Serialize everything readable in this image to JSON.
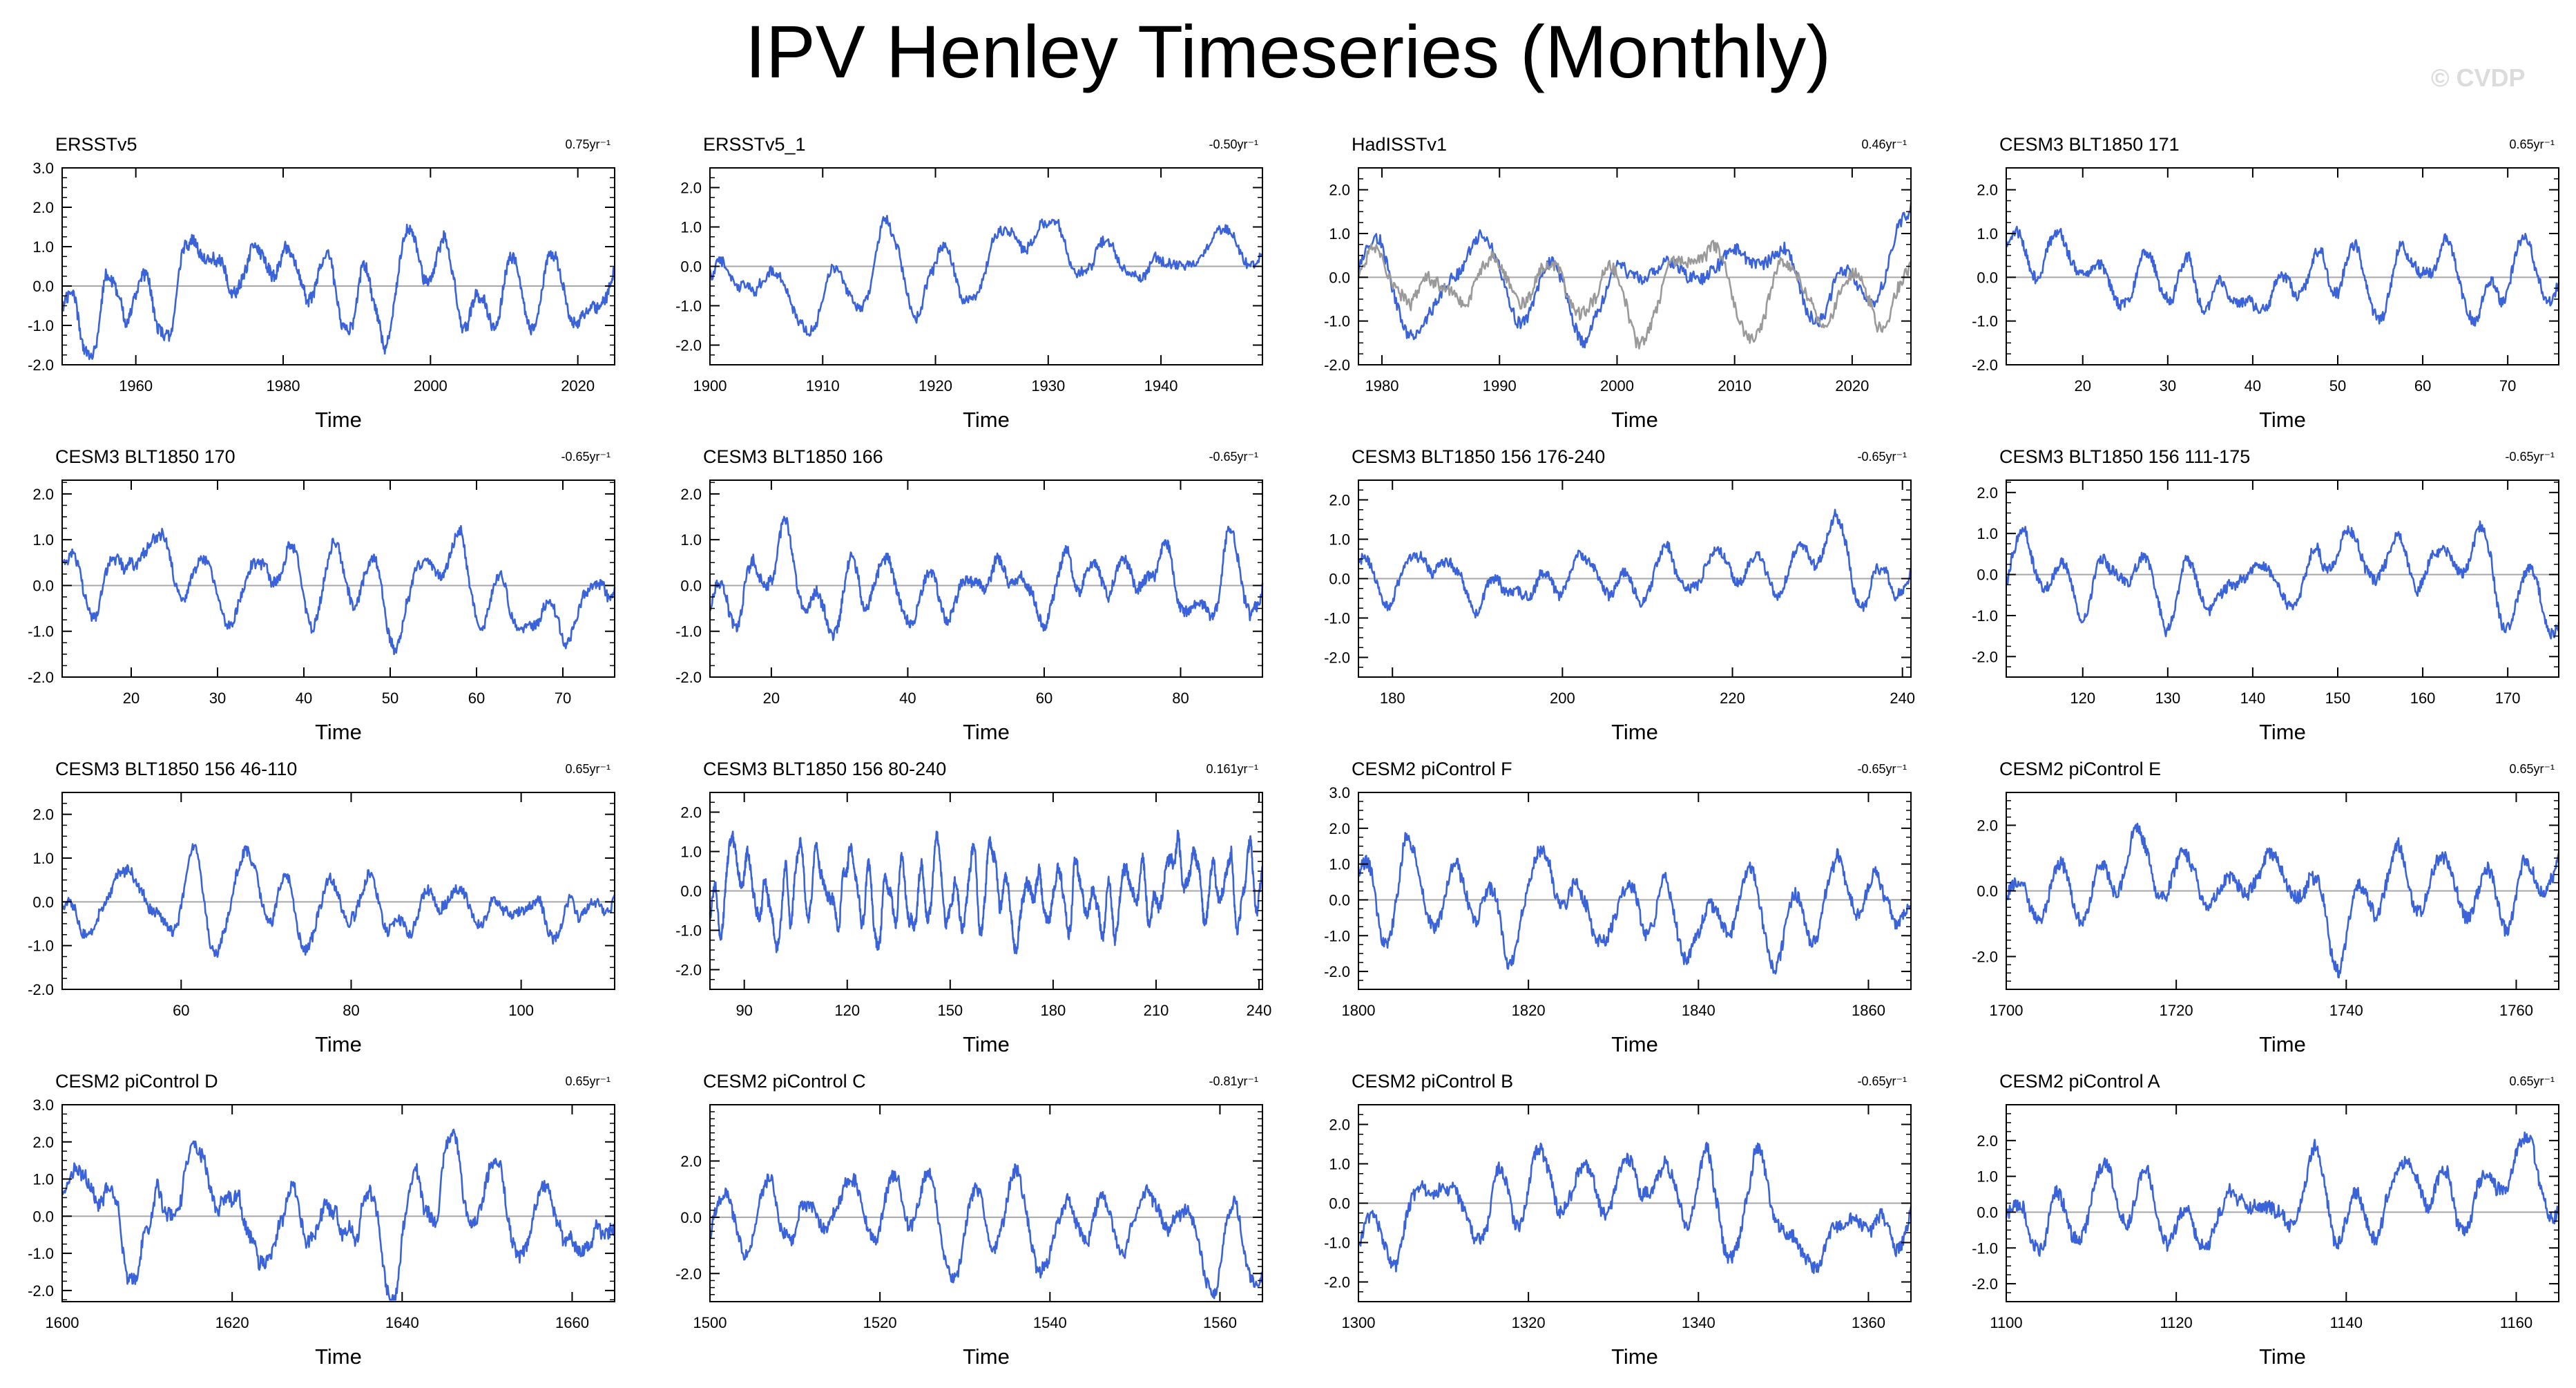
{
  "page": {
    "title": "IPV Henley Timeseries (Monthly)",
    "credit": "© CVDP"
  },
  "colors": {
    "line": "#3a62d9",
    "line_alt": "#9a9a9a",
    "axis": "#000000",
    "zero": "#a8a8a8",
    "credit": "#dcdcdc"
  },
  "chart_data": [
    {
      "type": "line",
      "title": "ERSSTv5",
      "trend": "0.75yr⁻¹",
      "xlabel": "Time",
      "x_range": [
        1950,
        2025
      ],
      "ylim": [
        -2.0,
        3.0
      ],
      "xticks": [
        1960,
        1980,
        2000,
        2020
      ],
      "yticks": [
        -2.0,
        -1.0,
        0.0,
        1.0,
        2.0,
        3.0
      ],
      "series": [
        {
          "amplitude": 0.9,
          "months": 900,
          "smooth": 18
        }
      ]
    },
    {
      "type": "line",
      "title": "ERSSTv5_1",
      "trend": "-0.50yr⁻¹",
      "xlabel": "Time",
      "x_range": [
        1900,
        1949
      ],
      "ylim": [
        -2.5,
        2.5
      ],
      "xticks": [
        1900,
        1910,
        1920,
        1930,
        1940
      ],
      "yticks": [
        -2.0,
        -1.0,
        0.0,
        1.0,
        2.0
      ],
      "series": [
        {
          "amplitude": 0.8,
          "months": 600,
          "smooth": 18
        }
      ]
    },
    {
      "type": "line",
      "title": "HadISSTv1",
      "trend": "0.46yr⁻¹",
      "xlabel": "Time",
      "x_range": [
        1978,
        2025
      ],
      "ylim": [
        -2.0,
        2.5
      ],
      "xticks": [
        1980,
        1990,
        2000,
        2010,
        2020
      ],
      "yticks": [
        -2.0,
        -1.0,
        0.0,
        1.0,
        2.0
      ],
      "series": [
        {
          "amplitude": 0.85,
          "months": 560,
          "smooth": 18
        },
        {
          "amplitude": 0.8,
          "months": 560,
          "smooth": 18,
          "alt": true
        }
      ]
    },
    {
      "type": "line",
      "title": "CESM3 BLT1850 171",
      "trend": "0.65yr⁻¹",
      "xlabel": "Time",
      "x_range": [
        11,
        76
      ],
      "ylim": [
        -2.0,
        2.5
      ],
      "xticks": [
        20,
        30,
        40,
        50,
        60,
        70
      ],
      "yticks": [
        -2.0,
        -1.0,
        0.0,
        1.0,
        2.0
      ],
      "series": [
        {
          "amplitude": 0.7,
          "months": 780,
          "smooth": 12
        }
      ]
    },
    {
      "type": "line",
      "title": "CESM3 BLT1850 170",
      "trend": "-0.65yr⁻¹",
      "xlabel": "Time",
      "x_range": [
        12,
        76
      ],
      "ylim": [
        -2.0,
        2.3
      ],
      "xticks": [
        20,
        30,
        40,
        50,
        60,
        70
      ],
      "yticks": [
        -2.0,
        -1.0,
        0.0,
        1.0,
        2.0
      ],
      "series": [
        {
          "amplitude": 0.65,
          "months": 770,
          "smooth": 12
        }
      ]
    },
    {
      "type": "line",
      "title": "CESM3 BLT1850 166",
      "trend": "-0.65yr⁻¹",
      "xlabel": "Time",
      "x_range": [
        11,
        92
      ],
      "ylim": [
        -2.0,
        2.3
      ],
      "xticks": [
        20,
        40,
        60,
        80
      ],
      "yticks": [
        -2.0,
        -1.0,
        0.0,
        1.0,
        2.0
      ],
      "series": [
        {
          "amplitude": 0.7,
          "months": 970,
          "smooth": 10
        }
      ]
    },
    {
      "type": "line",
      "title": "CESM3 BLT1850 156 176-240",
      "trend": "-0.65yr⁻¹",
      "xlabel": "Time",
      "x_range": [
        176,
        241
      ],
      "ylim": [
        -2.5,
        2.5
      ],
      "xticks": [
        180,
        200,
        220,
        240
      ],
      "yticks": [
        -2.0,
        -1.0,
        0.0,
        1.0,
        2.0
      ],
      "series": [
        {
          "amplitude": 0.75,
          "months": 780,
          "smooth": 12
        }
      ]
    },
    {
      "type": "line",
      "title": "CESM3 BLT1850 156 111-175",
      "trend": "-0.65yr⁻¹",
      "xlabel": "Time",
      "x_range": [
        111,
        176
      ],
      "ylim": [
        -2.5,
        2.3
      ],
      "xticks": [
        120,
        130,
        140,
        150,
        160,
        170
      ],
      "yticks": [
        -2.0,
        -1.0,
        0.0,
        1.0,
        2.0
      ],
      "series": [
        {
          "amplitude": 0.75,
          "months": 780,
          "smooth": 12
        }
      ]
    },
    {
      "type": "line",
      "title": "CESM3 BLT1850 156 46-110",
      "trend": "0.65yr⁻¹",
      "xlabel": "Time",
      "x_range": [
        46,
        111
      ],
      "ylim": [
        -2.0,
        2.5
      ],
      "xticks": [
        60,
        80,
        100
      ],
      "yticks": [
        -2.0,
        -1.0,
        0.0,
        1.0,
        2.0
      ],
      "series": [
        {
          "amplitude": 0.7,
          "months": 780,
          "smooth": 12
        }
      ]
    },
    {
      "type": "line",
      "title": "CESM3 BLT1850 156 80-240",
      "trend": "0.161yr⁻¹",
      "xlabel": "Time",
      "x_range": [
        80,
        241
      ],
      "ylim": [
        -2.5,
        2.5
      ],
      "xticks": [
        90,
        120,
        150,
        180,
        210,
        240
      ],
      "yticks": [
        -2.0,
        -1.0,
        0.0,
        1.0,
        2.0
      ],
      "series": [
        {
          "amplitude": 0.8,
          "months": 1930,
          "smooth": 8
        }
      ]
    },
    {
      "type": "line",
      "title": "CESM2 piControl F",
      "trend": "-0.65yr⁻¹",
      "xlabel": "Time",
      "x_range": [
        1800,
        1865
      ],
      "ylim": [
        -2.5,
        3.0
      ],
      "xticks": [
        1800,
        1820,
        1840,
        1860
      ],
      "yticks": [
        -2.0,
        -1.0,
        0.0,
        1.0,
        2.0,
        3.0
      ],
      "series": [
        {
          "amplitude": 1.1,
          "months": 780,
          "smooth": 14
        }
      ]
    },
    {
      "type": "line",
      "title": "CESM2 piControl E",
      "trend": "0.65yr⁻¹",
      "xlabel": "Time",
      "x_range": [
        1700,
        1765
      ],
      "ylim": [
        -3.0,
        3.0
      ],
      "xticks": [
        1700,
        1720,
        1740,
        1760
      ],
      "yticks": [
        -2.0,
        0.0,
        2.0
      ],
      "series": [
        {
          "amplitude": 1.2,
          "months": 780,
          "smooth": 14
        }
      ]
    },
    {
      "type": "line",
      "title": "CESM2 piControl D",
      "trend": "0.65yr⁻¹",
      "xlabel": "Time",
      "x_range": [
        1600,
        1665
      ],
      "ylim": [
        -2.3,
        3.0
      ],
      "xticks": [
        1600,
        1620,
        1640,
        1660
      ],
      "yticks": [
        -2.0,
        -1.0,
        0.0,
        1.0,
        2.0,
        3.0
      ],
      "series": [
        {
          "amplitude": 1.1,
          "months": 780,
          "smooth": 14
        }
      ]
    },
    {
      "type": "line",
      "title": "CESM2 piControl C",
      "trend": "-0.81yr⁻¹",
      "xlabel": "Time",
      "x_range": [
        1500,
        1565
      ],
      "ylim": [
        -3.0,
        4.0
      ],
      "xticks": [
        1500,
        1520,
        1540,
        1560
      ],
      "yticks": [
        -2.0,
        0.0,
        2.0
      ],
      "series": [
        {
          "amplitude": 1.3,
          "months": 780,
          "smooth": 14
        }
      ]
    },
    {
      "type": "line",
      "title": "CESM2 piControl B",
      "trend": "-0.65yr⁻¹",
      "xlabel": "Time",
      "x_range": [
        1300,
        1365
      ],
      "ylim": [
        -2.5,
        2.5
      ],
      "xticks": [
        1300,
        1320,
        1340,
        1360
      ],
      "yticks": [
        -2.0,
        -1.0,
        0.0,
        1.0,
        2.0
      ],
      "series": [
        {
          "amplitude": 1.0,
          "months": 780,
          "smooth": 14
        }
      ]
    },
    {
      "type": "line",
      "title": "CESM2 piControl A",
      "trend": "0.65yr⁻¹",
      "xlabel": "Time",
      "x_range": [
        1100,
        1165
      ],
      "ylim": [
        -2.5,
        3.0
      ],
      "xticks": [
        1100,
        1120,
        1140,
        1160
      ],
      "yticks": [
        -2.0,
        -1.0,
        0.0,
        1.0,
        2.0
      ],
      "series": [
        {
          "amplitude": 1.1,
          "months": 780,
          "smooth": 14
        }
      ]
    }
  ]
}
